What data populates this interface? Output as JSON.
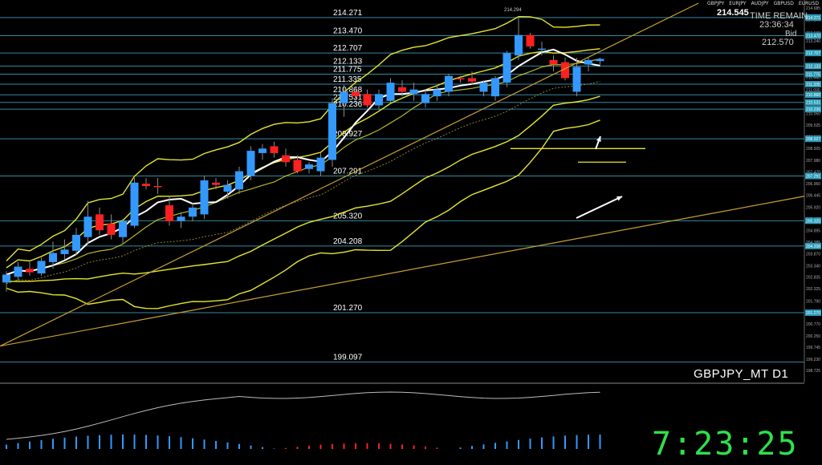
{
  "window": {
    "symbol": "GBPJPY_MT D1",
    "tabs": [
      "GBPJPY",
      "EURJPY",
      "AUDJPY",
      "GBPUSD",
      "EURUSD"
    ]
  },
  "top_right": {
    "current_price": "214.545",
    "time_remain_label": "TIME REMAIN",
    "time_remain": "23:36:34",
    "bid_label": "Bid",
    "bid_value": "212.570"
  },
  "clock": "7:23:25",
  "colors": {
    "background": "#000000",
    "bull_candle": "#3399ff",
    "bear_candle": "#ff2020",
    "ma_fast": "#ffffff",
    "bands": "#e6e62e",
    "trendline": "#c8a030",
    "levels": "#40a0c0",
    "clock": "#2fe04a"
  },
  "chart_data": {
    "type": "candlestick",
    "symbol": "GBPJPY",
    "timeframe": "D1",
    "ylim": [
      198.2,
      214.9
    ],
    "y_ticks": [
      "214.685",
      "214.175",
      "213.600",
      "213.240",
      "212.650",
      "212.130",
      "211.640",
      "211.090",
      "210.570",
      "210.050",
      "209.525",
      "209.015",
      "208.505",
      "207.980",
      "207.470",
      "206.960",
      "206.445",
      "205.920",
      "205.405",
      "204.895",
      "204.385",
      "203.870",
      "203.340",
      "202.835",
      "202.325",
      "201.790",
      "201.280",
      "200.770",
      "200.250",
      "199.745",
      "199.230",
      "198.725"
    ],
    "levels": [
      "214.271",
      "213.470",
      "212.707",
      "212.133",
      "211.775",
      "211.335",
      "210.868",
      "210.531",
      "210.236",
      "208.927",
      "207.291",
      "205.320",
      "204.208",
      "201.270",
      "199.097"
    ],
    "right_axis_badges": [
      "214.271",
      "213.470",
      "212.707",
      "212.133",
      "211.775",
      "211.335",
      "210.868",
      "210.531",
      "210.236",
      "208.927",
      "207.291",
      "205.320",
      "204.208",
      "201.270"
    ],
    "annotation_high": "214.294",
    "candles": [
      {
        "o": 202.6,
        "h": 203.1,
        "l": 202.2,
        "c": 202.95
      },
      {
        "o": 202.85,
        "h": 203.5,
        "l": 202.6,
        "c": 203.3
      },
      {
        "o": 203.2,
        "h": 203.5,
        "l": 202.9,
        "c": 203.05
      },
      {
        "o": 203.0,
        "h": 203.7,
        "l": 202.9,
        "c": 203.55
      },
      {
        "o": 203.5,
        "h": 204.4,
        "l": 203.2,
        "c": 203.9
      },
      {
        "o": 203.85,
        "h": 204.5,
        "l": 203.6,
        "c": 204.05
      },
      {
        "o": 204.0,
        "h": 205.0,
        "l": 203.8,
        "c": 204.7
      },
      {
        "o": 204.6,
        "h": 206.2,
        "l": 204.3,
        "c": 205.5
      },
      {
        "o": 205.6,
        "h": 205.9,
        "l": 204.7,
        "c": 204.9
      },
      {
        "o": 205.2,
        "h": 205.6,
        "l": 204.5,
        "c": 204.7
      },
      {
        "o": 204.6,
        "h": 205.4,
        "l": 204.3,
        "c": 205.3
      },
      {
        "o": 205.1,
        "h": 207.2,
        "l": 205.0,
        "c": 207.0
      },
      {
        "o": 206.95,
        "h": 207.2,
        "l": 206.7,
        "c": 206.85
      },
      {
        "o": 206.85,
        "h": 207.2,
        "l": 206.5,
        "c": 206.8
      },
      {
        "o": 206.0,
        "h": 206.4,
        "l": 205.1,
        "c": 205.3
      },
      {
        "o": 205.3,
        "h": 205.7,
        "l": 205.0,
        "c": 205.5
      },
      {
        "o": 205.5,
        "h": 206.1,
        "l": 205.3,
        "c": 205.9
      },
      {
        "o": 205.6,
        "h": 207.3,
        "l": 205.4,
        "c": 207.1
      },
      {
        "o": 207.0,
        "h": 207.2,
        "l": 206.7,
        "c": 206.9
      },
      {
        "o": 206.6,
        "h": 207.1,
        "l": 206.3,
        "c": 206.9
      },
      {
        "o": 206.7,
        "h": 207.7,
        "l": 206.5,
        "c": 207.5
      },
      {
        "o": 207.3,
        "h": 208.6,
        "l": 207.1,
        "c": 208.4
      },
      {
        "o": 208.3,
        "h": 208.7,
        "l": 208.0,
        "c": 208.5
      },
      {
        "o": 208.6,
        "h": 208.8,
        "l": 208.1,
        "c": 208.3
      },
      {
        "o": 208.2,
        "h": 208.5,
        "l": 207.7,
        "c": 207.9
      },
      {
        "o": 208.0,
        "h": 208.2,
        "l": 207.4,
        "c": 207.5
      },
      {
        "o": 207.6,
        "h": 207.9,
        "l": 207.4,
        "c": 207.8
      },
      {
        "o": 207.5,
        "h": 208.3,
        "l": 207.3,
        "c": 208.1
      },
      {
        "o": 208.0,
        "h": 210.7,
        "l": 207.7,
        "c": 210.5
      },
      {
        "o": 210.5,
        "h": 211.3,
        "l": 209.9,
        "c": 211.0
      },
      {
        "o": 211.0,
        "h": 211.2,
        "l": 210.6,
        "c": 210.8
      },
      {
        "o": 210.9,
        "h": 211.1,
        "l": 210.3,
        "c": 210.4
      },
      {
        "o": 210.4,
        "h": 211.1,
        "l": 210.2,
        "c": 210.9
      },
      {
        "o": 210.6,
        "h": 211.6,
        "l": 210.5,
        "c": 211.4
      },
      {
        "o": 211.2,
        "h": 211.5,
        "l": 210.8,
        "c": 211.0
      },
      {
        "o": 210.9,
        "h": 211.4,
        "l": 210.6,
        "c": 211.1
      },
      {
        "o": 210.5,
        "h": 211.1,
        "l": 210.3,
        "c": 210.9
      },
      {
        "o": 210.8,
        "h": 211.3,
        "l": 210.6,
        "c": 211.1
      },
      {
        "o": 211.0,
        "h": 211.8,
        "l": 210.8,
        "c": 211.7
      },
      {
        "o": 211.6,
        "h": 211.7,
        "l": 211.4,
        "c": 211.55
      },
      {
        "o": 211.6,
        "h": 211.9,
        "l": 211.3,
        "c": 211.45
      },
      {
        "o": 211.0,
        "h": 211.5,
        "l": 210.8,
        "c": 211.4
      },
      {
        "o": 210.8,
        "h": 211.7,
        "l": 210.6,
        "c": 211.6
      },
      {
        "o": 211.4,
        "h": 212.8,
        "l": 211.2,
        "c": 212.7
      },
      {
        "o": 212.6,
        "h": 214.3,
        "l": 212.4,
        "c": 213.5
      },
      {
        "o": 213.5,
        "h": 213.6,
        "l": 212.9,
        "c": 213.0
      },
      {
        "o": 212.9,
        "h": 213.2,
        "l": 212.6,
        "c": 212.9
      },
      {
        "o": 212.4,
        "h": 212.6,
        "l": 211.9,
        "c": 212.2
      },
      {
        "o": 212.3,
        "h": 212.5,
        "l": 211.5,
        "c": 211.6
      },
      {
        "o": 211.0,
        "h": 212.5,
        "l": 210.8,
        "c": 212.1
      },
      {
        "o": 212.2,
        "h": 212.5,
        "l": 211.9,
        "c": 212.4
      },
      {
        "o": 212.35,
        "h": 212.5,
        "l": 212.2,
        "c": 212.45
      }
    ]
  }
}
